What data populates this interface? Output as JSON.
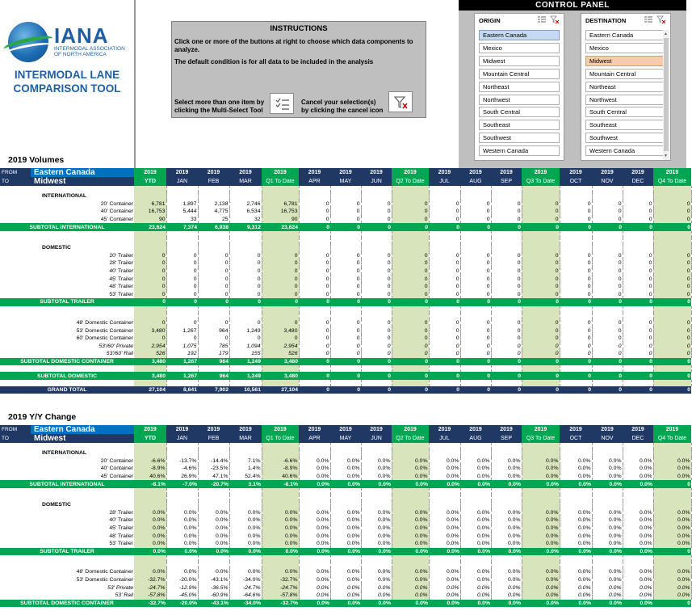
{
  "logo": {
    "word": "IANA",
    "sub": "INTERMODAL ASSOCIATION OF NORTH AMERICA"
  },
  "tool_title_1": "INTERMODAL LANE",
  "tool_title_2": "COMPARISON TOOL",
  "instructions": {
    "title": "INSTRUCTIONS",
    "line1": "Click one or more of the buttons at right to choose which data components to analyze.",
    "line2": "The default condition is for all data to be included in the analysis",
    "multi": "Select more than one item by clicking the Multi-Select Tool",
    "cancel": "Cancel your selection(s) by clicking the cancel icon"
  },
  "control_panel": {
    "title": "CONTROL PANEL",
    "origin": {
      "title": "ORIGIN",
      "selected": "Eastern Canada",
      "items": [
        "Eastern Canada",
        "Mexico",
        "Midwest",
        "Mountain Central",
        "Northeast",
        "Northwest",
        "South Central",
        "Southeast",
        "Southwest",
        "Western Canada"
      ]
    },
    "destination": {
      "title": "DESTINATION",
      "selected": "Midwest",
      "items": [
        "Eastern Canada",
        "Mexico",
        "Midwest",
        "Mountain Central",
        "Northeast",
        "Northwest",
        "South Central",
        "Southeast",
        "Southwest",
        "Western Canada"
      ]
    }
  },
  "header": {
    "from_label": "FROM",
    "to_label": "TO",
    "from_value": "Eastern Canada",
    "to_value": "Midwest",
    "year": "2019",
    "cols": [
      "YTD",
      "JAN",
      "FEB",
      "MAR",
      "Q1 To Date",
      "APR",
      "MAY",
      "JUN",
      "Q2 To Date",
      "JUL",
      "AUG",
      "SEP",
      "Q3 To Date",
      "OCT",
      "NOV",
      "DEC",
      "Q4 To Date"
    ]
  },
  "volumes": {
    "title": "2019 Volumes",
    "rows": [
      {
        "type": "blank"
      },
      {
        "type": "cat",
        "label": "INTERNATIONAL"
      },
      {
        "type": "it",
        "label": "20' Container",
        "v": [
          "6,781",
          "1,897",
          "2,138",
          "2,746",
          "6,781",
          "0",
          "0",
          "0",
          "0",
          "0",
          "0",
          "0",
          "0",
          "0",
          "0",
          "0",
          "0"
        ]
      },
      {
        "type": "it",
        "label": "40' Container",
        "v": [
          "16,753",
          "5,444",
          "4,775",
          "6,534",
          "16,753",
          "0",
          "0",
          "0",
          "0",
          "0",
          "0",
          "0",
          "0",
          "0",
          "0",
          "0",
          "0"
        ]
      },
      {
        "type": "it",
        "label": "45' Container",
        "v": [
          "90",
          "33",
          "25",
          "32",
          "90",
          "0",
          "0",
          "0",
          "0",
          "0",
          "0",
          "0",
          "0",
          "0",
          "0",
          "0",
          "0"
        ]
      },
      {
        "type": "sub",
        "label": "SUBTOTAL INTERNATIONAL",
        "v": [
          "23,624",
          "7,374",
          "6,938",
          "9,312",
          "23,624",
          "0",
          "0",
          "0",
          "0",
          "0",
          "0",
          "0",
          "0",
          "0",
          "0",
          "0",
          "0"
        ]
      },
      {
        "type": "blank"
      },
      {
        "type": "blank"
      },
      {
        "type": "cat",
        "label": "DOMESTIC"
      },
      {
        "type": "it",
        "label": "20' Trailer",
        "v": [
          "0",
          "0",
          "0",
          "0",
          "0",
          "0",
          "0",
          "0",
          "0",
          "0",
          "0",
          "0",
          "0",
          "0",
          "0",
          "0",
          "0"
        ]
      },
      {
        "type": "it",
        "label": "28' Trailer",
        "v": [
          "0",
          "0",
          "0",
          "0",
          "0",
          "0",
          "0",
          "0",
          "0",
          "0",
          "0",
          "0",
          "0",
          "0",
          "0",
          "0",
          "0"
        ]
      },
      {
        "type": "it",
        "label": "40' Trailer",
        "v": [
          "0",
          "0",
          "0",
          "0",
          "0",
          "0",
          "0",
          "0",
          "0",
          "0",
          "0",
          "0",
          "0",
          "0",
          "0",
          "0",
          "0"
        ]
      },
      {
        "type": "it",
        "label": "45' Trailer",
        "v": [
          "0",
          "0",
          "0",
          "0",
          "0",
          "0",
          "0",
          "0",
          "0",
          "0",
          "0",
          "0",
          "0",
          "0",
          "0",
          "0",
          "0"
        ]
      },
      {
        "type": "it",
        "label": "48' Trailer",
        "v": [
          "0",
          "0",
          "0",
          "0",
          "0",
          "0",
          "0",
          "0",
          "0",
          "0",
          "0",
          "0",
          "0",
          "0",
          "0",
          "0",
          "0"
        ]
      },
      {
        "type": "it",
        "label": "53' Trailer",
        "v": [
          "0",
          "0",
          "0",
          "0",
          "0",
          "0",
          "0",
          "0",
          "0",
          "0",
          "0",
          "0",
          "0",
          "0",
          "0",
          "0",
          "0"
        ]
      },
      {
        "type": "sub",
        "label": "SUBTOTAL TRAILER",
        "v": [
          "0",
          "0",
          "0",
          "0",
          "0",
          "0",
          "0",
          "0",
          "0",
          "0",
          "0",
          "0",
          "0",
          "0",
          "0",
          "0",
          "0"
        ]
      },
      {
        "type": "blank"
      },
      {
        "type": "blank"
      },
      {
        "type": "it",
        "label": "48' Domestic Container",
        "v": [
          "0",
          "0",
          "0",
          "0",
          "0",
          "0",
          "0",
          "0",
          "0",
          "0",
          "0",
          "0",
          "0",
          "0",
          "0",
          "0",
          "0"
        ]
      },
      {
        "type": "it",
        "label": "53' Domestic Container",
        "v": [
          "3,480",
          "1,267",
          "964",
          "1,249",
          "3,480",
          "0",
          "0",
          "0",
          "0",
          "0",
          "0",
          "0",
          "0",
          "0",
          "0",
          "0",
          "0"
        ]
      },
      {
        "type": "it",
        "label": "60' Domestic Container",
        "v": [
          "0",
          "0",
          "0",
          "0",
          "0",
          "0",
          "0",
          "0",
          "0",
          "0",
          "0",
          "0",
          "0",
          "0",
          "0",
          "0",
          "0"
        ]
      },
      {
        "type": "ital",
        "label": "53'/60' Private",
        "v": [
          "2,954",
          "1,075",
          "785",
          "1,094",
          "2,954",
          "0",
          "0",
          "0",
          "0",
          "0",
          "0",
          "0",
          "0",
          "0",
          "0",
          "0",
          "0"
        ]
      },
      {
        "type": "ital",
        "label": "53'/60' Rail",
        "v": [
          "526",
          "192",
          "179",
          "155",
          "526",
          "0",
          "0",
          "0",
          "0",
          "0",
          "0",
          "0",
          "0",
          "0",
          "0",
          "0",
          "0"
        ]
      },
      {
        "type": "sub",
        "label": "SUBTOTAL DOMESTIC CONTAINER",
        "v": [
          "3,480",
          "1,267",
          "964",
          "1,249",
          "3,480",
          "0",
          "0",
          "0",
          "0",
          "0",
          "0",
          "0",
          "0",
          "0",
          "0",
          "0",
          "0"
        ]
      },
      {
        "type": "blank"
      },
      {
        "type": "sub",
        "label": "SUBTOTAL DOMESTIC",
        "v": [
          "3,480",
          "1,267",
          "964",
          "1,249",
          "3,480",
          "0",
          "0",
          "0",
          "0",
          "0",
          "0",
          "0",
          "0",
          "0",
          "0",
          "0",
          "0"
        ]
      },
      {
        "type": "blank"
      },
      {
        "type": "grand",
        "label": "GRAND TOTAL",
        "v": [
          "27,104",
          "8,641",
          "7,902",
          "10,561",
          "27,104",
          "0",
          "0",
          "0",
          "0",
          "0",
          "0",
          "0",
          "0",
          "0",
          "0",
          "0",
          "0"
        ]
      }
    ]
  },
  "yoy": {
    "title": "2019 Y/Y Change",
    "rows": [
      {
        "type": "blank"
      },
      {
        "type": "cat",
        "label": "INTERNATIONAL"
      },
      {
        "type": "it",
        "label": "20' Container",
        "v": [
          "-6.6%",
          "-13.7%",
          "-14.4%",
          "7.1%",
          "-6.6%",
          "0.0%",
          "0.0%",
          "0.0%",
          "0.0%",
          "0.0%",
          "0.0%",
          "0.0%",
          "0.0%",
          "0.0%",
          "0.0%",
          "0.0%",
          "0.0%"
        ]
      },
      {
        "type": "it",
        "label": "40' Container",
        "v": [
          "-8.9%",
          "-4.6%",
          "-23.5%",
          "1.4%",
          "-8.9%",
          "0.0%",
          "0.0%",
          "0.0%",
          "0.0%",
          "0.0%",
          "0.0%",
          "0.0%",
          "0.0%",
          "0.0%",
          "0.0%",
          "0.0%",
          "0.0%"
        ]
      },
      {
        "type": "it",
        "label": "45' Container",
        "v": [
          "40.6%",
          "26.9%",
          "47.1%",
          "52.4%",
          "40.6%",
          "0.0%",
          "0.0%",
          "0.0%",
          "0.0%",
          "0.0%",
          "0.0%",
          "0.0%",
          "0.0%",
          "0.0%",
          "0.0%",
          "0.0%",
          "0.0%"
        ]
      },
      {
        "type": "sub",
        "label": "SUBTOTAL INTERNATIONAL",
        "v": [
          "-8.1%",
          "-7.0%",
          "-20.7%",
          "3.1%",
          "-8.1%",
          "0.0%",
          "0.0%",
          "0.0%",
          "0.0%",
          "0.0%",
          "0.0%",
          "0.0%",
          "0.0%",
          "0.0%",
          "0.0%",
          "0.0%",
          "0"
        ]
      },
      {
        "type": "blank"
      },
      {
        "type": "blank"
      },
      {
        "type": "cat",
        "label": "DOMESTIC"
      },
      {
        "type": "it",
        "label": "28' Trailer",
        "v": [
          "0.0%",
          "0.0%",
          "0.0%",
          "0.0%",
          "0.0%",
          "0.0%",
          "0.0%",
          "0.0%",
          "0.0%",
          "0.0%",
          "0.0%",
          "0.0%",
          "0.0%",
          "0.0%",
          "0.0%",
          "0.0%",
          "0.0%"
        ]
      },
      {
        "type": "it",
        "label": "40' Trailer",
        "v": [
          "0.0%",
          "0.0%",
          "0.0%",
          "0.0%",
          "0.0%",
          "0.0%",
          "0.0%",
          "0.0%",
          "0.0%",
          "0.0%",
          "0.0%",
          "0.0%",
          "0.0%",
          "0.0%",
          "0.0%",
          "0.0%",
          "0.0%"
        ]
      },
      {
        "type": "it",
        "label": "45' Trailer",
        "v": [
          "0.0%",
          "0.0%",
          "0.0%",
          "0.0%",
          "0.0%",
          "0.0%",
          "0.0%",
          "0.0%",
          "0.0%",
          "0.0%",
          "0.0%",
          "0.0%",
          "0.0%",
          "0.0%",
          "0.0%",
          "0.0%",
          "0.0%"
        ]
      },
      {
        "type": "it",
        "label": "48' Trailer",
        "v": [
          "0.0%",
          "0.0%",
          "0.0%",
          "0.0%",
          "0.0%",
          "0.0%",
          "0.0%",
          "0.0%",
          "0.0%",
          "0.0%",
          "0.0%",
          "0.0%",
          "0.0%",
          "0.0%",
          "0.0%",
          "0.0%",
          "0.0%"
        ]
      },
      {
        "type": "it",
        "label": "53' Trailer",
        "v": [
          "0.0%",
          "0.0%",
          "0.0%",
          "0.0%",
          "0.0%",
          "0.0%",
          "0.0%",
          "0.0%",
          "0.0%",
          "0.0%",
          "0.0%",
          "0.0%",
          "0.0%",
          "0.0%",
          "0.0%",
          "0.0%",
          "0.0%"
        ]
      },
      {
        "type": "sub",
        "label": "SUBTOTAL TRAILER",
        "v": [
          "0.0%",
          "0.0%",
          "0.0%",
          "0.0%",
          "0.0%",
          "0.0%",
          "0.0%",
          "0.0%",
          "0.0%",
          "0.0%",
          "0.0%",
          "0.0%",
          "0.0%",
          "0.0%",
          "0.0%",
          "0.0%",
          "0"
        ]
      },
      {
        "type": "blank"
      },
      {
        "type": "blank"
      },
      {
        "type": "it",
        "label": "48' Domestic Container",
        "v": [
          "0.0%",
          "0.0%",
          "0.0%",
          "0.0%",
          "0.0%",
          "0.0%",
          "0.0%",
          "0.0%",
          "0.0%",
          "0.0%",
          "0.0%",
          "0.0%",
          "0.0%",
          "0.0%",
          "0.0%",
          "0.0%",
          "0.0%"
        ]
      },
      {
        "type": "it",
        "label": "53' Domestic Container",
        "v": [
          "-32.7%",
          "-20.0%",
          "-43.1%",
          "-34.0%",
          "-32.7%",
          "0.0%",
          "0.0%",
          "0.0%",
          "0.0%",
          "0.0%",
          "0.0%",
          "0.0%",
          "0.0%",
          "0.0%",
          "0.0%",
          "0.0%",
          "0.0%"
        ]
      },
      {
        "type": "ital",
        "label": "53' Private",
        "v": [
          "-24.7%",
          "-12.9%",
          "-36.5%",
          "-24.7%",
          "-24.7%",
          "0.0%",
          "0.0%",
          "0.0%",
          "0.0%",
          "0.0%",
          "0.0%",
          "0.0%",
          "0.0%",
          "0.0%",
          "0.0%",
          "0.0%",
          "0.0%"
        ]
      },
      {
        "type": "ital",
        "label": "53' Rail",
        "v": [
          "-57.8%",
          "-45.0%",
          "-60.9%",
          "-64.6%",
          "-57.8%",
          "0.0%",
          "0.0%",
          "0.0%",
          "0.0%",
          "0.0%",
          "0.0%",
          "0.0%",
          "0.0%",
          "0.0%",
          "0.0%",
          "0.0%",
          "0.0%"
        ]
      },
      {
        "type": "sub",
        "label": "SUBTOTAL DOMESTIC CONTAINER",
        "v": [
          "-32.7%",
          "-20.0%",
          "-43.1%",
          "-34.0%",
          "-32.7%",
          "0.0%",
          "0.0%",
          "0.0%",
          "0.0%",
          "0.0%",
          "0.0%",
          "0.0%",
          "0.0%",
          "0.0%",
          "0.0%",
          "0.0%",
          "0"
        ]
      }
    ]
  }
}
